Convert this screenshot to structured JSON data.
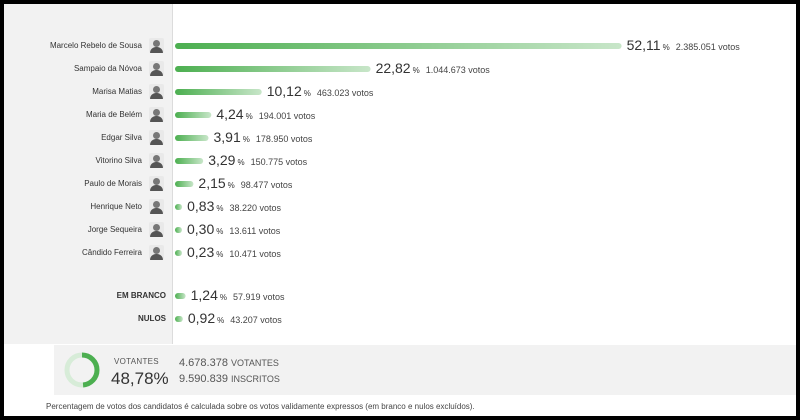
{
  "chart_data": {
    "type": "bar",
    "orientation": "horizontal",
    "xlim": [
      0,
      100
    ],
    "grid": false,
    "bar_color": "#4caf50",
    "bar_color_light": "#c8e6c9",
    "candidates": [
      {
        "name": "Marcelo Rebelo de Sousa",
        "pct": 52.11,
        "pct_text": "52,11",
        "votes": "2.385.051 votos"
      },
      {
        "name": "Sampaio da Nóvoa",
        "pct": 22.82,
        "pct_text": "22,82",
        "votes": "1.044.673 votos"
      },
      {
        "name": "Marisa Matias",
        "pct": 10.12,
        "pct_text": "10,12",
        "votes": "463.023 votos"
      },
      {
        "name": "Maria de Belém",
        "pct": 4.24,
        "pct_text": "4,24",
        "votes": "194.001 votos"
      },
      {
        "name": "Edgar Silva",
        "pct": 3.91,
        "pct_text": "3,91",
        "votes": "178.950 votos"
      },
      {
        "name": "Vitorino Silva",
        "pct": 3.29,
        "pct_text": "3,29",
        "votes": "150.775 votos"
      },
      {
        "name": "Paulo de Morais",
        "pct": 2.15,
        "pct_text": "2,15",
        "votes": "98.477 votos"
      },
      {
        "name": "Henrique Neto",
        "pct": 0.83,
        "pct_text": "0,83",
        "votes": "38.220 votos"
      },
      {
        "name": "Jorge Sequeira",
        "pct": 0.3,
        "pct_text": "0,30",
        "votes": "13.611 votos"
      },
      {
        "name": "Cândido Ferreira",
        "pct": 0.23,
        "pct_text": "0,23",
        "votes": "10.471 votos"
      }
    ],
    "other": [
      {
        "name": "EM BRANCO",
        "pct": 1.24,
        "pct_text": "1,24",
        "votes": "57.919 votos"
      },
      {
        "name": "NULOS",
        "pct": 0.92,
        "pct_text": "0,92",
        "votes": "43.207 votos"
      }
    ],
    "percent_symbol": "%"
  },
  "summary": {
    "votantes_label": "VOTANTES",
    "turnout": 48.78,
    "turnout_text": "48,78",
    "percent_symbol": "%",
    "votantes_number": "4.678.378",
    "votantes_word": "VOTANTES",
    "inscritos_number": "9.590.839",
    "inscritos_word": "INSCRITOS",
    "ring_color": "#4caf50",
    "ring_track_color": "#d7ecd8"
  },
  "footnote": "Percentagem de votos dos candidatos é calculada sobre os votos validamente expressos (em branco e nulos excluídos)."
}
